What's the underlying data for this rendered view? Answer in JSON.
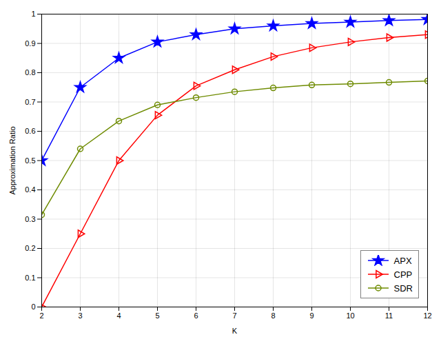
{
  "chart_data": {
    "type": "line",
    "x": [
      2,
      3,
      4,
      5,
      6,
      7,
      8,
      9,
      10,
      11,
      12
    ],
    "series": [
      {
        "name": "APX",
        "color": "#0000FF",
        "marker": "star",
        "values": [
          0.5,
          0.75,
          0.85,
          0.905,
          0.93,
          0.95,
          0.96,
          0.968,
          0.973,
          0.978,
          0.982
        ]
      },
      {
        "name": "CPP",
        "color": "#FF0000",
        "marker": "triangle-right",
        "values": [
          0.0,
          0.25,
          0.5,
          0.655,
          0.755,
          0.81,
          0.855,
          0.885,
          0.905,
          0.92,
          0.93
        ]
      },
      {
        "name": "SDR",
        "color": "#6E8B00",
        "marker": "circle",
        "values": [
          0.315,
          0.54,
          0.635,
          0.69,
          0.715,
          0.735,
          0.748,
          0.758,
          0.762,
          0.767,
          0.772
        ]
      }
    ],
    "xlabel": "K",
    "ylabel": "Approximation Ratio",
    "xlim": [
      2,
      12
    ],
    "ylim": [
      0,
      1
    ],
    "xticks": [
      2,
      3,
      4,
      5,
      6,
      7,
      8,
      9,
      10,
      11,
      12
    ],
    "yticks": [
      0,
      0.1,
      0.2,
      0.3,
      0.4,
      0.5,
      0.6,
      0.7,
      0.8,
      0.9,
      1
    ],
    "grid": true,
    "legend": "lower right"
  }
}
